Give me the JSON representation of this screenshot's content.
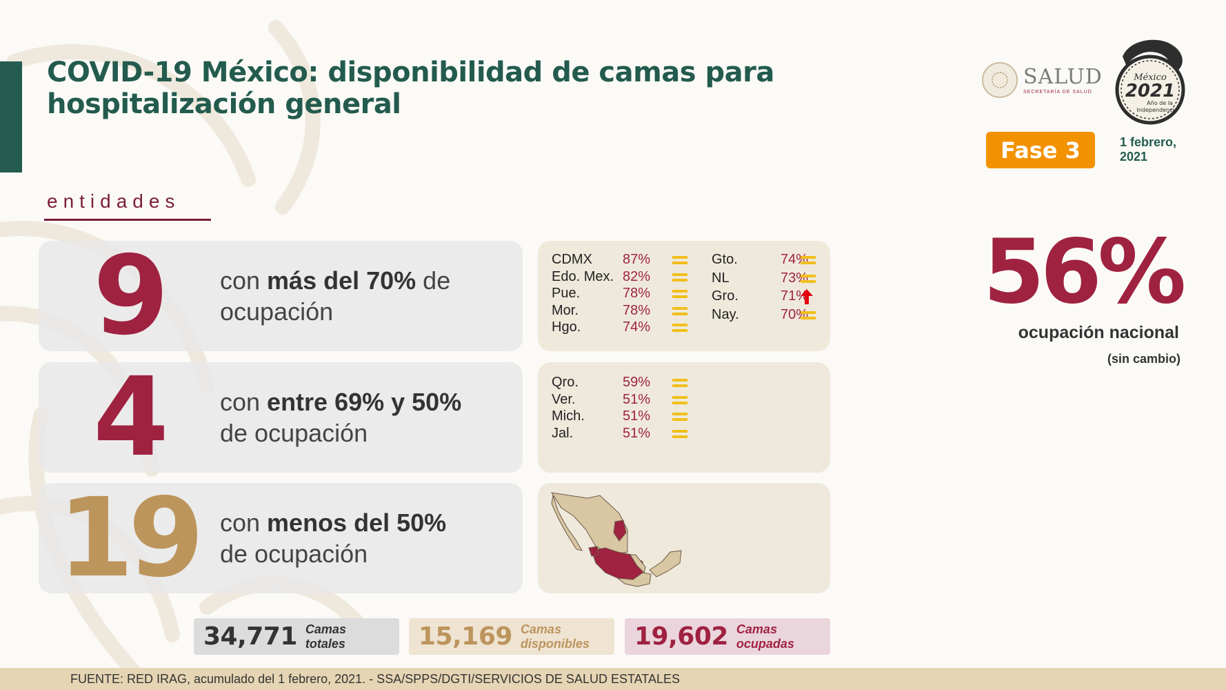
{
  "header": {
    "title": "COVID-19 México: disponibilidad de camas para hospitalización general",
    "fase": "Fase 3",
    "date_line1": "1 febrero,",
    "date_line2": "2021"
  },
  "logos": {
    "salud_word": "SALUD",
    "salud_sub": "SECRETARÍA DE SALUD",
    "anio_logo_text": [
      "México",
      "2021",
      "Año de la",
      "Independencia"
    ]
  },
  "national": {
    "percent": "56%",
    "label": "ocupación nacional",
    "note": "(sin cambio)"
  },
  "entidades_label": "entidades",
  "groups": [
    {
      "count": "9",
      "text_pre": "con ",
      "text_bold": "más del 70%",
      "text_post": " de",
      "text_line2": "ocupación",
      "states": [
        {
          "name": "CDMX",
          "pct": "87%",
          "trend": "equal"
        },
        {
          "name": "Edo. Mex.",
          "pct": "82%",
          "trend": "equal"
        },
        {
          "name": "Pue.",
          "pct": "78%",
          "trend": "equal"
        },
        {
          "name": "Mor.",
          "pct": "78%",
          "trend": "equal"
        },
        {
          "name": "Hgo.",
          "pct": "74%",
          "trend": "equal"
        },
        {
          "name": "Gto.",
          "pct": "74%",
          "trend": "equal"
        },
        {
          "name": "NL",
          "pct": "73%",
          "trend": "equal"
        },
        {
          "name": "Gro.",
          "pct": "71%",
          "trend": "up"
        },
        {
          "name": "Nay.",
          "pct": "70%",
          "trend": "equal"
        }
      ]
    },
    {
      "count": "4",
      "text_pre": "con ",
      "text_bold": "entre 69% y 50%",
      "text_post": "",
      "text_line2": "de ocupación",
      "states": [
        {
          "name": "Qro.",
          "pct": "59%",
          "trend": "equal"
        },
        {
          "name": "Ver.",
          "pct": "51%",
          "trend": "equal"
        },
        {
          "name": "Mich.",
          "pct": "51%",
          "trend": "equal"
        },
        {
          "name": "Jal.",
          "pct": "51%",
          "trend": "equal"
        }
      ]
    },
    {
      "count": "19",
      "text_pre": "con ",
      "text_bold": "menos del 50%",
      "text_post": "",
      "text_line2": "de ocupación"
    }
  ],
  "beds": {
    "total": {
      "value": "34,771",
      "label1": "Camas",
      "label2": "totales"
    },
    "available": {
      "value": "15,169",
      "label1": "Camas",
      "label2": "disponibles"
    },
    "occupied": {
      "value": "19,602",
      "label1": "Camas",
      "label2": "ocupadas"
    }
  },
  "footer": {
    "source": "FUENTE: RED IRAG, acumulado del 1 febrero, 2021. -  SSA/SPPS/DGTI/SERVICIOS DE SALUD ESTATALES"
  },
  "colors": {
    "green": "#235b4e",
    "maroon": "#9f2241",
    "gold": "#bc955c",
    "orange": "#f39200",
    "equal_icon": "#f2bf1a",
    "up_arrow": "#e3000f"
  }
}
